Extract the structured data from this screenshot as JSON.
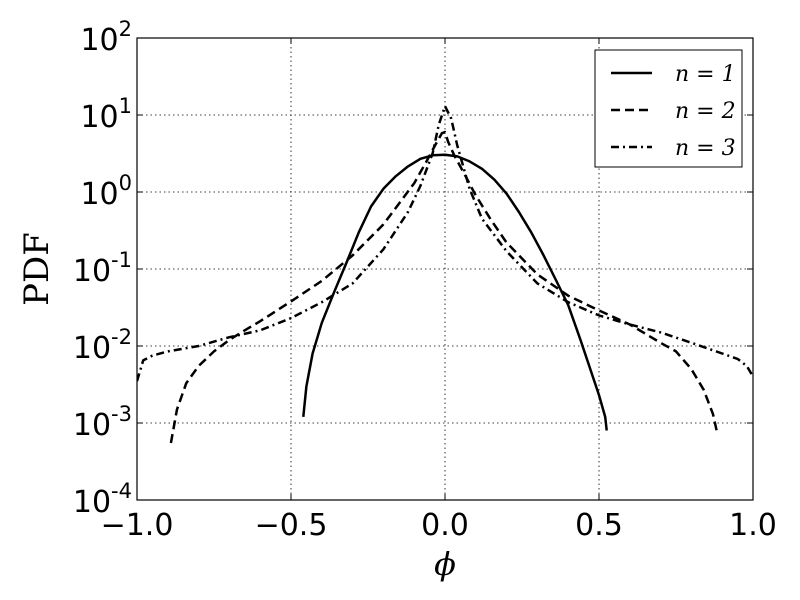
{
  "chart_data": {
    "type": "line",
    "title": "",
    "xlabel": "ϕ",
    "ylabel": "PDF",
    "xlim": [
      -1.0,
      1.0
    ],
    "ylim": [
      0.0001,
      100
    ],
    "yscale": "log",
    "grid": true,
    "legend_position": "top-right",
    "x_ticks": [
      -1.0,
      -0.5,
      0.0,
      0.5,
      1.0
    ],
    "x_tick_labels": [
      "−1.0",
      "−0.5",
      "0.0",
      "0.5",
      "1.0"
    ],
    "y_ticks": [
      {
        "value": 0.0001,
        "base": "10",
        "exp": "-4"
      },
      {
        "value": 0.001,
        "base": "10",
        "exp": "-3"
      },
      {
        "value": 0.01,
        "base": "10",
        "exp": "-2"
      },
      {
        "value": 0.1,
        "base": "10",
        "exp": "-1"
      },
      {
        "value": 1,
        "base": "10",
        "exp": "0"
      },
      {
        "value": 10,
        "base": "10",
        "exp": "1"
      },
      {
        "value": 100,
        "base": "10",
        "exp": "2"
      }
    ],
    "series": [
      {
        "name": "n = 1",
        "style": "solid",
        "color": "#000000",
        "x": [
          -0.46,
          -0.45,
          -0.43,
          -0.4,
          -0.36,
          -0.32,
          -0.28,
          -0.24,
          -0.2,
          -0.16,
          -0.12,
          -0.08,
          -0.04,
          0.0,
          0.04,
          0.08,
          0.12,
          0.16,
          0.2,
          0.24,
          0.28,
          0.32,
          0.36,
          0.4,
          0.44,
          0.48,
          0.5,
          0.52,
          0.525
        ],
        "y": [
          0.0012,
          0.003,
          0.008,
          0.02,
          0.05,
          0.12,
          0.3,
          0.65,
          1.1,
          1.6,
          2.15,
          2.7,
          3.0,
          3.05,
          2.9,
          2.5,
          2.0,
          1.45,
          0.95,
          0.55,
          0.3,
          0.15,
          0.072,
          0.034,
          0.012,
          0.004,
          0.0023,
          0.0012,
          0.0008
        ]
      },
      {
        "name": "n = 2",
        "style": "dashed",
        "color": "#000000",
        "x": [
          -0.89,
          -0.87,
          -0.84,
          -0.8,
          -0.75,
          -0.7,
          -0.65,
          -0.6,
          -0.5,
          -0.4,
          -0.3,
          -0.2,
          -0.15,
          -0.1,
          -0.06,
          -0.03,
          -0.01,
          0.0,
          0.01,
          0.03,
          0.06,
          0.1,
          0.15,
          0.2,
          0.3,
          0.4,
          0.5,
          0.6,
          0.7,
          0.75,
          0.8,
          0.84,
          0.87,
          0.885
        ],
        "y": [
          0.00055,
          0.0015,
          0.0033,
          0.0055,
          0.0085,
          0.012,
          0.016,
          0.021,
          0.038,
          0.07,
          0.15,
          0.38,
          0.7,
          1.3,
          2.5,
          4.2,
          5.8,
          6.0,
          4.5,
          3.0,
          1.8,
          0.9,
          0.43,
          0.22,
          0.085,
          0.045,
          0.029,
          0.019,
          0.011,
          0.0085,
          0.005,
          0.0027,
          0.0013,
          0.0007
        ]
      },
      {
        "name": "n = 3",
        "style": "dashdot",
        "color": "#000000",
        "x": [
          -1.0,
          -0.98,
          -0.95,
          -0.9,
          -0.8,
          -0.7,
          -0.6,
          -0.5,
          -0.4,
          -0.3,
          -0.2,
          -0.12,
          -0.08,
          -0.04,
          -0.02,
          0.0,
          0.02,
          0.04,
          0.08,
          0.12,
          0.2,
          0.3,
          0.4,
          0.5,
          0.6,
          0.7,
          0.8,
          0.9,
          0.95,
          0.98,
          1.0
        ],
        "y": [
          0.0035,
          0.0065,
          0.0075,
          0.0085,
          0.01,
          0.013,
          0.016,
          0.023,
          0.037,
          0.065,
          0.18,
          0.55,
          1.2,
          3.2,
          7.5,
          13.0,
          9.0,
          4.0,
          1.1,
          0.45,
          0.17,
          0.065,
          0.037,
          0.025,
          0.019,
          0.015,
          0.011,
          0.008,
          0.0068,
          0.0055,
          0.004
        ]
      }
    ]
  }
}
